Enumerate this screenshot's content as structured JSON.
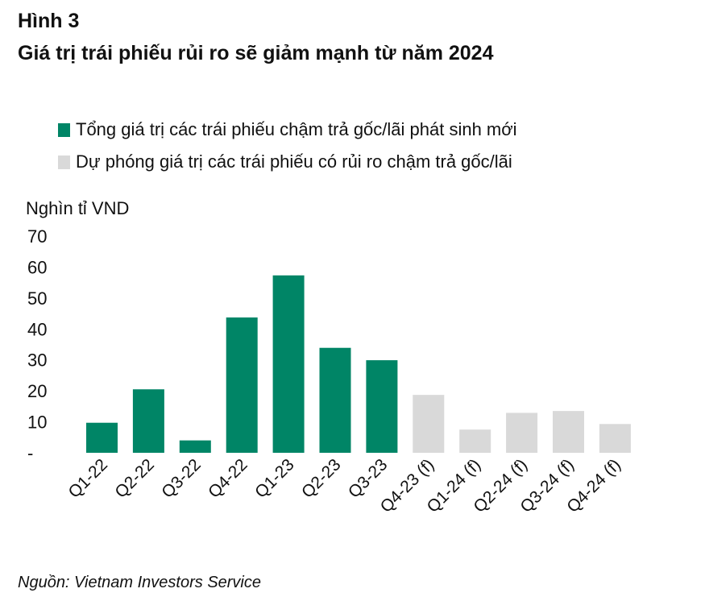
{
  "figure_number": "Hình 3",
  "title": "Giá trị trái phiếu rủi ro sẽ giảm mạnh từ năm 2024",
  "source": "Nguồn: Vietnam Investors Service",
  "chart_data": {
    "type": "bar",
    "ylabel": "Nghìn tỉ VND",
    "ylim": [
      0,
      70
    ],
    "yticks": [
      0,
      10,
      20,
      30,
      40,
      50,
      60,
      70
    ],
    "ytick_labels": [
      "-",
      "10",
      "20",
      "30",
      "40",
      "50",
      "60",
      "70"
    ],
    "grid": false,
    "legend_position": "top-left",
    "categories": [
      "Q1-22",
      "Q2-22",
      "Q3-22",
      "Q4-22",
      "Q1-23",
      "Q2-23",
      "Q3-23",
      "Q4-23 (f)",
      "Q1-24 (f)",
      "Q2-24 (f)",
      "Q3-24 (f)",
      "Q4-24 (f)"
    ],
    "series": [
      {
        "name": "Tổng giá trị các trái phiếu chậm trả gốc/lãi phát sinh mới",
        "color": "#008566",
        "values": [
          9.7,
          20.5,
          4.0,
          43.7,
          57.3,
          33.9,
          29.9,
          null,
          null,
          null,
          null,
          null
        ]
      },
      {
        "name": "Dự phóng giá trị các trái phiếu có rủi ro chậm trả gốc/lãi",
        "color": "#d9d9d9",
        "values": [
          null,
          null,
          null,
          null,
          null,
          null,
          null,
          18.7,
          7.5,
          12.9,
          13.5,
          9.3
        ]
      }
    ]
  }
}
